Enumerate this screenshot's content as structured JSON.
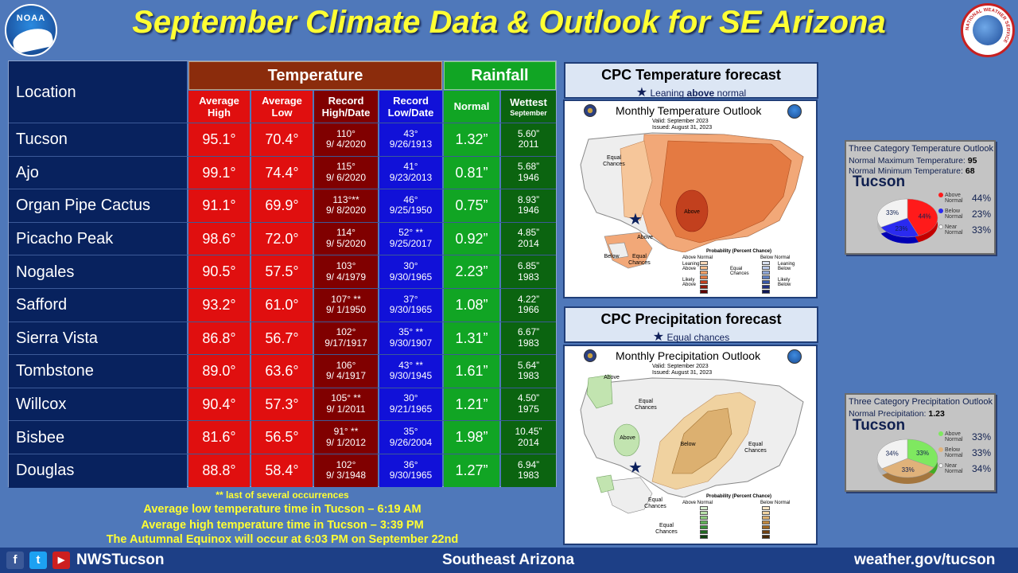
{
  "header": {
    "title": "September Climate Data & Outlook for SE Arizona",
    "noaa_logo_text": "NOAA",
    "nws_logo_text": "NATIONAL WEATHER SERVICE"
  },
  "table": {
    "location_header": "Location",
    "temperature_header": "Temperature",
    "rainfall_header": "Rainfall",
    "sub_avg_high": "Average High",
    "sub_avg_low": "Average Low",
    "sub_rec_high": "Record High/Date",
    "sub_rec_low": "Record Low/Date",
    "sub_normal": "Normal",
    "sub_wettest": "Wettest",
    "sub_wettest_small": "September",
    "rows": [
      {
        "loc": "Tucson",
        "hi": "95.1°",
        "lo": "70.4°",
        "rh": "110°",
        "rhd": "9/ 4/2020",
        "rl": "43°",
        "rld": "9/26/1913",
        "norm": "1.32”",
        "wet": "5.60”",
        "wety": "2011"
      },
      {
        "loc": "Ajo",
        "hi": "99.1°",
        "lo": "74.4°",
        "rh": "115°",
        "rhd": "9/ 6/2020",
        "rl": "41°",
        "rld": "9/23/2013",
        "norm": "0.81”",
        "wet": "5.68”",
        "wety": "1946"
      },
      {
        "loc": "Organ Pipe Cactus",
        "hi": "91.1°",
        "lo": "69.9°",
        "rh": "113°**",
        "rhd": "9/ 8/2020",
        "rl": "46°",
        "rld": "9/25/1950",
        "norm": "0.75”",
        "wet": "8.93”",
        "wety": "1946"
      },
      {
        "loc": "Picacho Peak",
        "hi": "98.6°",
        "lo": "72.0°",
        "rh": "114°",
        "rhd": "9/ 5/2020",
        "rl": "52° **",
        "rld": "9/25/2017",
        "norm": "0.92”",
        "wet": "4.85”",
        "wety": "2014"
      },
      {
        "loc": "Nogales",
        "hi": "90.5°",
        "lo": "57.5°",
        "rh": "103°",
        "rhd": "9/ 4/1979",
        "rl": "30°",
        "rld": "9/30/1965",
        "norm": "2.23”",
        "wet": "6.85”",
        "wety": "1983"
      },
      {
        "loc": "Safford",
        "hi": "93.2°",
        "lo": "61.0°",
        "rh": "107° **",
        "rhd": "9/ 1/1950",
        "rl": "37°",
        "rld": "9/30/1965",
        "norm": "1.08”",
        "wet": "4.22”",
        "wety": "1966"
      },
      {
        "loc": "Sierra Vista",
        "hi": "86.8°",
        "lo": "56.7°",
        "rh": "102°",
        "rhd": "9/17/1917",
        "rl": "35° **",
        "rld": "9/30/1907",
        "norm": "1.31”",
        "wet": "6.67”",
        "wety": "1983"
      },
      {
        "loc": "Tombstone",
        "hi": "89.0°",
        "lo": "63.6°",
        "rh": "106°",
        "rhd": "9/ 4/1917",
        "rl": "43° **",
        "rld": "9/30/1945",
        "norm": "1.61”",
        "wet": "5.64”",
        "wety": "1983"
      },
      {
        "loc": "Willcox",
        "hi": "90.4°",
        "lo": "57.3°",
        "rh": "105° **",
        "rhd": "9/ 1/2011",
        "rl": "30°",
        "rld": "9/21/1965",
        "norm": "1.21”",
        "wet": "4.50”",
        "wety": "1975"
      },
      {
        "loc": "Bisbee",
        "hi": "81.6°",
        "lo": "56.5°",
        "rh": "91° **",
        "rhd": "9/ 1/2012",
        "rl": "35°",
        "rld": "9/26/2004",
        "norm": "1.98”",
        "wet": "10.45”",
        "wety": "2014"
      },
      {
        "loc": "Douglas",
        "hi": "88.8°",
        "lo": "58.4°",
        "rh": "102°",
        "rhd": "9/ 3/1948",
        "rl": "36°",
        "rld": "9/30/1965",
        "norm": "1.27”",
        "wet": "6.94”",
        "wety": "1983"
      }
    ]
  },
  "notes": {
    "star_note": "** last of several occurrences",
    "line1": "Average low temperature time in Tucson – 6:19 AM",
    "line2": "Average high temperature time in Tucson – 3:39 PM",
    "line3": "The Autumnal Equinox will occur at 6:03 PM on September 22nd"
  },
  "temp_forecast": {
    "title": "CPC Temperature forecast",
    "sub_prefix": "Leaning ",
    "sub_underlined": "above",
    "sub_suffix": " normal",
    "map_title": "Monthly Temperature Outlook",
    "valid": "Valid:  September 2023",
    "issued": "Issued:  August 31, 2023",
    "label_equal": "Equal Chances",
    "label_above": "Above",
    "label_above2": "Above",
    "label_below": "Below",
    "label_equal2": "Equal Chances",
    "legend_title": "Probability (Percent Chance)",
    "legend_above": "Above Normal",
    "legend_below": "Below Normal",
    "legend_lean_above": "Leaning Above",
    "legend_lean_below": "Leaning Below",
    "legend_equal": "Equal Chances",
    "legend_likely_above": "Likely Above",
    "legend_likely_below": "Likely Below"
  },
  "precip_forecast": {
    "title": "CPC Precipitation forecast",
    "sub": "Equal chances",
    "map_title": "Monthly Precipitation Outlook",
    "valid": "Valid:  September 2023",
    "issued": "Issued:  August 31, 2023",
    "label_above1": "Above",
    "label_equal1": "Equal Chances",
    "label_above2": "Above",
    "label_below": "Below",
    "label_equal2": "Equal Chances",
    "label_equal3": "Equal Chances",
    "label_equal4": "Equal Chances",
    "legend_title": "Probability (Percent Chance)",
    "legend_above": "Above Normal",
    "legend_below": "Below Normal"
  },
  "temp_pie": {
    "title": "Three Category Temperature Outlook",
    "max_label": "Normal Maximum Temperature: ",
    "max_value": "95",
    "min_label": "Normal Minimum Temperature: ",
    "min_value": "68",
    "city": "Tucson",
    "slices": [
      {
        "name": "Above Normal",
        "value": 44,
        "label": "44%",
        "color": "#ff1a1a"
      },
      {
        "name": "Below Normal",
        "value": 23,
        "label": "23%",
        "color": "#2a2af0"
      },
      {
        "name": "Near Normal",
        "value": 33,
        "label": "33%",
        "color": "#f2f2f2"
      }
    ],
    "legend_above": [
      "Above",
      "Normal"
    ],
    "legend_below": [
      "Below",
      "Normal"
    ],
    "legend_near": [
      "Near",
      "Normal"
    ]
  },
  "precip_pie": {
    "title": "Three Category Precipitation Outlook",
    "norm_label": "Normal Precipitation: ",
    "norm_value": "1.23",
    "city": "Tucson",
    "slices": [
      {
        "name": "Above Normal",
        "value": 33,
        "label": "33%",
        "color": "#7fe860"
      },
      {
        "name": "Below Normal",
        "value": 33,
        "label": "33%",
        "color": "#e0b27a"
      },
      {
        "name": "Near Normal",
        "value": 34,
        "label": "34%",
        "color": "#f2f2f2"
      }
    ],
    "legend_above": [
      "Above",
      "Normal"
    ],
    "legend_below": [
      "Below",
      "Normal"
    ],
    "legend_near": [
      "Near",
      "Normal"
    ]
  },
  "footer": {
    "handle": "NWSTucson",
    "region": "Southeast Arizona",
    "url": "weather.gov/tucson",
    "icons": [
      "facebook-icon",
      "twitter-icon",
      "youtube-icon"
    ]
  }
}
